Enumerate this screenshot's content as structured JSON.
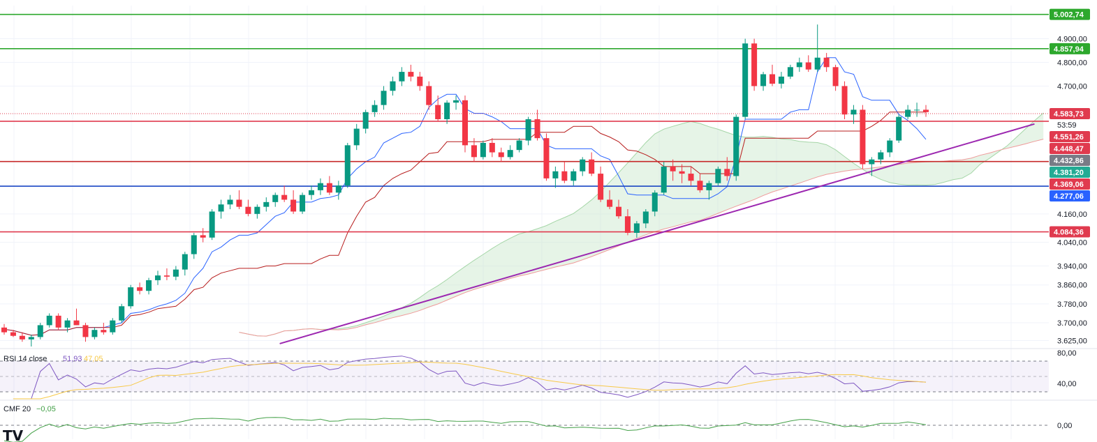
{
  "chart_data": {
    "type": "candlestick",
    "price_axis": {
      "ylim": [
        3600,
        5040
      ],
      "ticks": [
        "4.900,00",
        "4.800,00",
        "4.700,00",
        "4.160,00",
        "4.040,00",
        "3.940,00",
        "3.860,00",
        "3.780,00",
        "3.700,00",
        "3.625,00"
      ],
      "tick_values": [
        4900,
        4800,
        4700,
        4160,
        4040,
        3940,
        3860,
        3780,
        3700,
        3625
      ]
    },
    "levels": [
      {
        "label": "5.002,74",
        "value": 5002.74,
        "color": "#2da82d",
        "line": true
      },
      {
        "label": "4.857,94",
        "value": 4857.94,
        "color": "#2da82d",
        "line": true
      },
      {
        "label": "4.583,73",
        "value": 4583.73,
        "color": "#e03a4e",
        "line": false,
        "dotted": true
      },
      {
        "label": "4.551,26",
        "value": 4551.26,
        "color": "#e03a4e",
        "line": true
      },
      {
        "label": "4.448,47",
        "value": 4448.47,
        "color": "#e03a4e",
        "line": false
      },
      {
        "label": "4.432,86",
        "value": 4432.86,
        "color": "#787b86",
        "line": false
      },
      {
        "label": "4.381,20",
        "value": 4381.2,
        "color": "#22ab94",
        "line": true,
        "linecolor": "#c62828"
      },
      {
        "label": "4.369,06",
        "value": 4369.06,
        "color": "#e03a4e",
        "line": false
      },
      {
        "label": "4.277,06",
        "value": 4277.06,
        "color": "#2962ff",
        "line": true,
        "linecolor": "#1a47c4"
      },
      {
        "label": "4.084,36",
        "value": 4084.36,
        "color": "#e03a4e",
        "line": true
      }
    ],
    "countdown": "53:59",
    "trendline": {
      "from": [
        0.255,
        3612
      ],
      "to": [
        0.943,
        4540
      ]
    },
    "candles": [
      [
        3680,
        3695,
        3650,
        3660
      ],
      [
        3660,
        3670,
        3640,
        3645
      ],
      [
        3645,
        3660,
        3620,
        3630
      ],
      [
        3630,
        3650,
        3600,
        3640
      ],
      [
        3640,
        3700,
        3630,
        3690
      ],
      [
        3690,
        3740,
        3680,
        3730
      ],
      [
        3730,
        3740,
        3670,
        3680
      ],
      [
        3680,
        3720,
        3660,
        3710
      ],
      [
        3710,
        3760,
        3690,
        3690
      ],
      [
        3690,
        3700,
        3620,
        3640
      ],
      [
        3640,
        3680,
        3630,
        3670
      ],
      [
        3670,
        3700,
        3650,
        3660
      ],
      [
        3660,
        3720,
        3650,
        3710
      ],
      [
        3710,
        3780,
        3700,
        3770
      ],
      [
        3770,
        3860,
        3760,
        3850
      ],
      [
        3850,
        3870,
        3820,
        3835
      ],
      [
        3835,
        3890,
        3820,
        3880
      ],
      [
        3880,
        3920,
        3860,
        3900
      ],
      [
        3900,
        3930,
        3880,
        3895
      ],
      [
        3895,
        3940,
        3880,
        3925
      ],
      [
        3925,
        4000,
        3900,
        3990
      ],
      [
        3990,
        4080,
        3970,
        4070
      ],
      [
        4070,
        4100,
        4040,
        4060
      ],
      [
        4060,
        4180,
        4050,
        4170
      ],
      [
        4170,
        4220,
        4140,
        4200
      ],
      [
        4200,
        4240,
        4180,
        4220
      ],
      [
        4220,
        4260,
        4180,
        4190
      ],
      [
        4190,
        4220,
        4150,
        4160
      ],
      [
        4160,
        4200,
        4140,
        4190
      ],
      [
        4190,
        4230,
        4170,
        4210
      ],
      [
        4210,
        4250,
        4190,
        4240
      ],
      [
        4240,
        4280,
        4210,
        4220
      ],
      [
        4220,
        4260,
        4160,
        4170
      ],
      [
        4170,
        4250,
        4160,
        4240
      ],
      [
        4240,
        4280,
        4220,
        4260
      ],
      [
        4260,
        4310,
        4240,
        4290
      ],
      [
        4290,
        4320,
        4240,
        4250
      ],
      [
        4250,
        4300,
        4220,
        4280
      ],
      [
        4280,
        4460,
        4270,
        4450
      ],
      [
        4450,
        4540,
        4430,
        4520
      ],
      [
        4520,
        4600,
        4500,
        4590
      ],
      [
        4590,
        4640,
        4570,
        4620
      ],
      [
        4620,
        4700,
        4600,
        4680
      ],
      [
        4680,
        4740,
        4660,
        4720
      ],
      [
        4720,
        4780,
        4700,
        4760
      ],
      [
        4760,
        4790,
        4720,
        4740
      ],
      [
        4740,
        4760,
        4680,
        4700
      ],
      [
        4700,
        4720,
        4600,
        4620
      ],
      [
        4620,
        4660,
        4550,
        4560
      ],
      [
        4560,
        4640,
        4540,
        4630
      ],
      [
        4630,
        4660,
        4600,
        4640
      ],
      [
        4640,
        4660,
        4420,
        4450
      ],
      [
        4450,
        4480,
        4380,
        4400
      ],
      [
        4400,
        4470,
        4390,
        4460
      ],
      [
        4460,
        4480,
        4400,
        4420
      ],
      [
        4420,
        4440,
        4380,
        4400
      ],
      [
        4400,
        4450,
        4390,
        4430
      ],
      [
        4430,
        4480,
        4420,
        4470
      ],
      [
        4470,
        4570,
        4450,
        4560
      ],
      [
        4560,
        4600,
        4470,
        4480
      ],
      [
        4480,
        4500,
        4300,
        4310
      ],
      [
        4310,
        4360,
        4270,
        4340
      ],
      [
        4340,
        4380,
        4290,
        4300
      ],
      [
        4300,
        4350,
        4280,
        4340
      ],
      [
        4340,
        4400,
        4320,
        4390
      ],
      [
        4390,
        4420,
        4320,
        4330
      ],
      [
        4330,
        4360,
        4210,
        4220
      ],
      [
        4220,
        4260,
        4180,
        4190
      ],
      [
        4190,
        4220,
        4140,
        4150
      ],
      [
        4150,
        4180,
        4070,
        4080
      ],
      [
        4080,
        4130,
        4060,
        4120
      ],
      [
        4120,
        4180,
        4100,
        4170
      ],
      [
        4170,
        4260,
        4150,
        4250
      ],
      [
        4250,
        4380,
        4240,
        4360
      ],
      [
        4360,
        4390,
        4300,
        4340
      ],
      [
        4340,
        4370,
        4290,
        4330
      ],
      [
        4330,
        4360,
        4280,
        4300
      ],
      [
        4300,
        4330,
        4250,
        4260
      ],
      [
        4260,
        4300,
        4220,
        4290
      ],
      [
        4290,
        4360,
        4280,
        4350
      ],
      [
        4350,
        4400,
        4300,
        4320
      ],
      [
        4320,
        4580,
        4300,
        4570
      ],
      [
        4570,
        4900,
        4560,
        4880
      ],
      [
        4880,
        4900,
        4680,
        4700
      ],
      [
        4700,
        4760,
        4680,
        4750
      ],
      [
        4750,
        4790,
        4700,
        4710
      ],
      [
        4710,
        4760,
        4690,
        4740
      ],
      [
        4740,
        4790,
        4730,
        4780
      ],
      [
        4780,
        4820,
        4760,
        4800
      ],
      [
        4800,
        4830,
        4760,
        4770
      ],
      [
        4770,
        4960,
        4760,
        4820
      ],
      [
        4820,
        4840,
        4760,
        4780
      ],
      [
        4780,
        4790,
        4680,
        4700
      ],
      [
        4700,
        4720,
        4560,
        4580
      ],
      [
        4580,
        4620,
        4540,
        4600
      ],
      [
        4600,
        4620,
        4350,
        4370
      ],
      [
        4370,
        4400,
        4320,
        4390
      ],
      [
        4390,
        4430,
        4370,
        4420
      ],
      [
        4420,
        4480,
        4400,
        4470
      ],
      [
        4470,
        4580,
        4460,
        4570
      ],
      [
        4570,
        4620,
        4560,
        4600
      ],
      [
        4600,
        4630,
        4570,
        4600
      ],
      [
        4600,
        4620,
        4570,
        4590
      ]
    ],
    "indicators": [
      {
        "name": "RSI",
        "label": "RSI 14 close",
        "value": "51,93",
        "ma_value": "47,05",
        "value_color": "#7e57c2",
        "ma_color": "#f7c948",
        "ticks": [
          "80,00",
          "40,00"
        ]
      },
      {
        "name": "CMF",
        "label": "CMF 20",
        "value": "−0,05",
        "value_color": "#43a047",
        "ticks": [
          "0,00"
        ]
      }
    ]
  },
  "logo": "TV"
}
